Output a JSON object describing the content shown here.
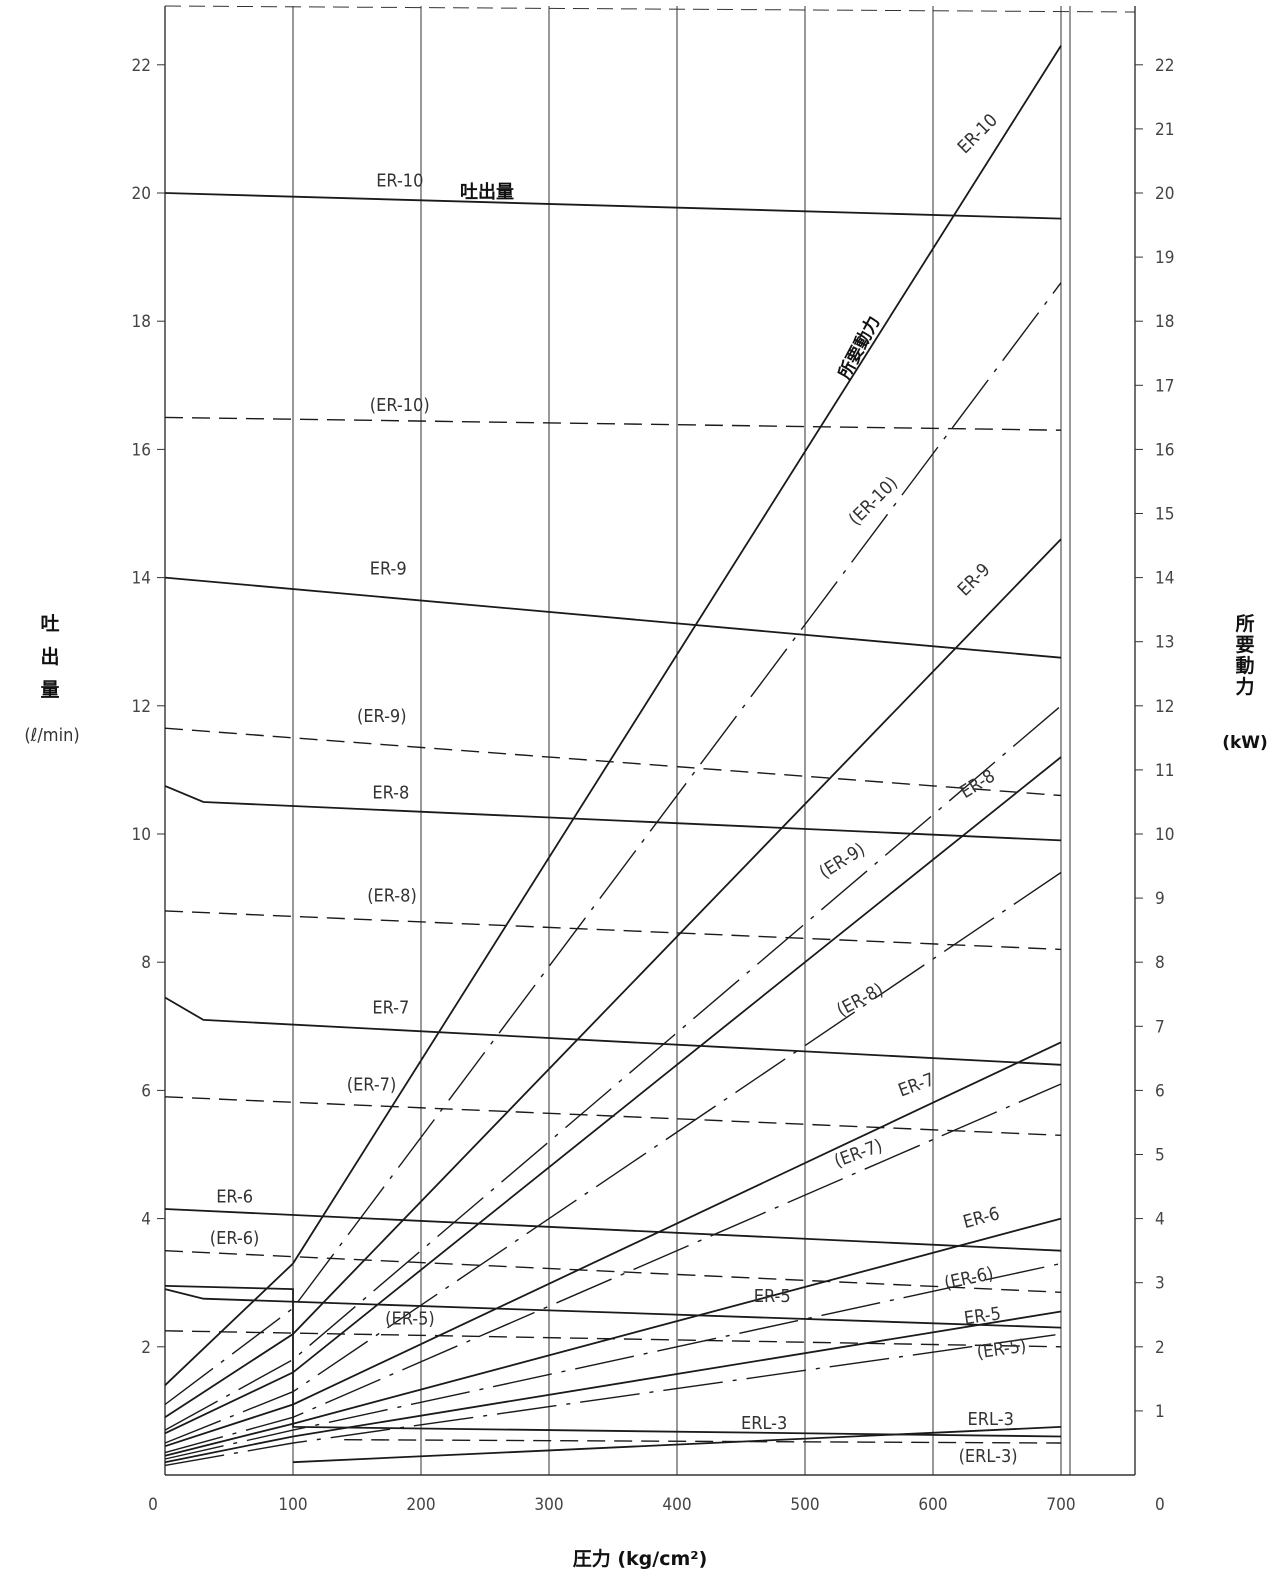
{
  "chart_data": {
    "type": "line",
    "xlabel": "圧力 (kg/cm²)",
    "ylabel_left_chars": [
      "吐",
      "出",
      "量"
    ],
    "ylabel_left_unit": "(ℓ/min)",
    "ylabel_right_chars": [
      "所",
      "要",
      "動",
      "力"
    ],
    "ylabel_right_unit": "(kW)",
    "xlim": [
      0,
      760
    ],
    "ylim_left": [
      0,
      23
    ],
    "ylim_right": [
      0,
      23
    ],
    "x_ticks": [
      "0",
      "100",
      "200",
      "300",
      "400",
      "500",
      "600",
      "700"
    ],
    "x_tick_values": [
      0,
      100,
      200,
      300,
      400,
      500,
      600,
      700
    ],
    "left_ticks": [
      "2",
      "4",
      "6",
      "8",
      "10",
      "12",
      "14",
      "16",
      "18",
      "20",
      "22"
    ],
    "left_tick_values": [
      2,
      4,
      6,
      8,
      10,
      12,
      14,
      16,
      18,
      20,
      22
    ],
    "right_ticks": [
      "0",
      "1",
      "2",
      "3",
      "4",
      "5",
      "6",
      "7",
      "8",
      "9",
      "10",
      "11",
      "12",
      "13",
      "14",
      "15",
      "16",
      "17",
      "18",
      "19",
      "20",
      "21",
      "22"
    ],
    "right_tick_values": [
      0,
      1,
      2,
      3,
      4,
      5,
      6,
      7,
      8,
      9,
      10,
      11,
      12,
      13,
      14,
      15,
      16,
      17,
      18,
      19,
      20,
      21,
      22
    ],
    "grid": true,
    "annotations": {
      "flow": "吐出量",
      "power": "所要動力"
    },
    "flow_series": [
      {
        "name": "ER-10",
        "style": "solid",
        "x": [
          0,
          700
        ],
        "y": [
          20.0,
          19.6
        ]
      },
      {
        "name": "(ER-10)",
        "style": "dashed",
        "x": [
          0,
          700
        ],
        "y": [
          16.5,
          16.3
        ]
      },
      {
        "name": "ER-9",
        "style": "solid",
        "x": [
          0,
          700
        ],
        "y": [
          14.0,
          12.75
        ]
      },
      {
        "name": "(ER-9)",
        "style": "dashed",
        "x": [
          0,
          700
        ],
        "y": [
          11.65,
          10.6
        ]
      },
      {
        "name": "ER-8",
        "style": "solid",
        "x": [
          0,
          30,
          700
        ],
        "y": [
          10.75,
          10.5,
          9.9
        ]
      },
      {
        "name": "(ER-8)",
        "style": "dashed",
        "x": [
          0,
          700
        ],
        "y": [
          8.8,
          8.2
        ]
      },
      {
        "name": "ER-7",
        "style": "solid",
        "x": [
          0,
          30,
          700
        ],
        "y": [
          7.45,
          7.1,
          6.4
        ]
      },
      {
        "name": "(ER-7)",
        "style": "dashed",
        "x": [
          0,
          700
        ],
        "y": [
          5.9,
          5.3
        ]
      },
      {
        "name": "ER-6",
        "style": "solid",
        "x": [
          0,
          700
        ],
        "y": [
          4.15,
          3.5
        ]
      },
      {
        "name": "(ER-6)",
        "style": "dashed",
        "x": [
          0,
          700
        ],
        "y": [
          3.5,
          2.85
        ]
      },
      {
        "name": "ER-5",
        "style": "solid",
        "x": [
          0,
          30,
          700
        ],
        "y": [
          2.9,
          2.75,
          2.3
        ]
      },
      {
        "name": "(ER-5)",
        "style": "dashed",
        "x": [
          0,
          700
        ],
        "y": [
          2.25,
          2.0
        ]
      },
      {
        "name": "ERL-3",
        "style": "solid",
        "x": [
          0,
          100,
          100,
          700
        ],
        "y": [
          2.95,
          2.9,
          0.75,
          0.6
        ]
      },
      {
        "name": "(ERL-3)",
        "style": "dashed",
        "x": [
          140,
          700
        ],
        "y": [
          0.55,
          0.5
        ]
      }
    ],
    "power_series": [
      {
        "name": "ER-10",
        "style": "solid",
        "x": [
          0,
          100,
          700
        ],
        "y": [
          1.4,
          3.3,
          22.3
        ]
      },
      {
        "name": "(ER-10)",
        "style": "dash-dot",
        "x": [
          0,
          100,
          700
        ],
        "y": [
          1.1,
          2.6,
          18.6
        ]
      },
      {
        "name": "ER-9",
        "style": "solid",
        "x": [
          0,
          100,
          700
        ],
        "y": [
          0.9,
          2.2,
          14.6
        ]
      },
      {
        "name": "(ER-9)",
        "style": "dash-dot",
        "x": [
          0,
          100,
          700
        ],
        "y": [
          0.7,
          1.8,
          12.0
        ]
      },
      {
        "name": "ER-8",
        "style": "solid",
        "x": [
          0,
          100,
          700
        ],
        "y": [
          0.65,
          1.6,
          11.2
        ]
      },
      {
        "name": "(ER-8)",
        "style": "dash-dot",
        "x": [
          0,
          100,
          700
        ],
        "y": [
          0.5,
          1.3,
          9.4
        ]
      },
      {
        "name": "ER-7",
        "style": "solid",
        "x": [
          0,
          100,
          700
        ],
        "y": [
          0.45,
          1.1,
          6.75
        ]
      },
      {
        "name": "(ER-7)",
        "style": "dash-dot",
        "x": [
          0,
          100,
          700
        ],
        "y": [
          0.35,
          0.9,
          6.1
        ]
      },
      {
        "name": "ER-6",
        "style": "solid",
        "x": [
          0,
          100,
          700
        ],
        "y": [
          0.3,
          0.8,
          4.0
        ]
      },
      {
        "name": "(ER-6)",
        "style": "dash-dot",
        "x": [
          0,
          100,
          700
        ],
        "y": [
          0.25,
          0.7,
          3.3
        ]
      },
      {
        "name": "ER-5",
        "style": "solid",
        "x": [
          0,
          100,
          700
        ],
        "y": [
          0.2,
          0.6,
          2.55
        ]
      },
      {
        "name": "(ER-5)",
        "style": "dash-dot",
        "x": [
          0,
          100,
          700
        ],
        "y": [
          0.15,
          0.5,
          2.2
        ]
      },
      {
        "name": "ERL-3",
        "style": "solid",
        "x": [
          100,
          700
        ],
        "y": [
          0.2,
          0.75
        ]
      }
    ],
    "labels": [
      {
        "text": "ER-10",
        "x": 165,
        "y": 20.1,
        "rot": 0
      },
      {
        "text": "(ER-10)",
        "x": 160,
        "y": 16.6,
        "rot": 0
      },
      {
        "text": "ER-9",
        "x": 160,
        "y": 14.05,
        "rot": 0
      },
      {
        "text": "(ER-9)",
        "x": 150,
        "y": 11.75,
        "rot": 0
      },
      {
        "text": "ER-8",
        "x": 162,
        "y": 10.55,
        "rot": 0
      },
      {
        "text": "(ER-8)",
        "x": 158,
        "y": 8.95,
        "rot": 0
      },
      {
        "text": "ER-7",
        "x": 162,
        "y": 7.2,
        "rot": 0
      },
      {
        "text": "(ER-7)",
        "x": 142,
        "y": 6.0,
        "rot": 0
      },
      {
        "text": "ER-6",
        "x": 40,
        "y": 4.25,
        "rot": 0
      },
      {
        "text": "(ER-6)",
        "x": 35,
        "y": 3.6,
        "rot": 0
      },
      {
        "text": "(ER-5)",
        "x": 172,
        "y": 2.35,
        "rot": 0
      },
      {
        "text": "ER-5",
        "x": 460,
        "y": 2.7,
        "rot": 0
      },
      {
        "text": "ERL-3",
        "x": 450,
        "y": 0.72,
        "rot": 0
      },
      {
        "text": "ER-10",
        "x": 625,
        "y": 20.6,
        "rot": -45
      },
      {
        "text": "(ER-10)",
        "x": 540,
        "y": 14.8,
        "rot": -45
      },
      {
        "text": "ER-9",
        "x": 625,
        "y": 13.7,
        "rot": -45
      },
      {
        "text": "(ER-9)",
        "x": 515,
        "y": 9.3,
        "rot": -32
      },
      {
        "text": "ER-8",
        "x": 625,
        "y": 10.55,
        "rot": -32
      },
      {
        "text": "(ER-8)",
        "x": 528,
        "y": 7.15,
        "rot": -28
      },
      {
        "text": "ER-7",
        "x": 575,
        "y": 5.9,
        "rot": -20
      },
      {
        "text": "(ER-7)",
        "x": 525,
        "y": 4.8,
        "rot": -20
      },
      {
        "text": "ER-6",
        "x": 625,
        "y": 3.85,
        "rot": -15
      },
      {
        "text": "(ER-6)",
        "x": 610,
        "y": 2.9,
        "rot": -12
      },
      {
        "text": "ER-5",
        "x": 625,
        "y": 2.35,
        "rot": -8
      },
      {
        "text": "(ER-5)",
        "x": 635,
        "y": 1.82,
        "rot": -8
      },
      {
        "text": "ERL-3",
        "x": 627,
        "y": 0.78,
        "rot": 0
      },
      {
        "text": "(ERL-3)",
        "x": 620,
        "y": 0.2,
        "rot": 0
      }
    ]
  }
}
